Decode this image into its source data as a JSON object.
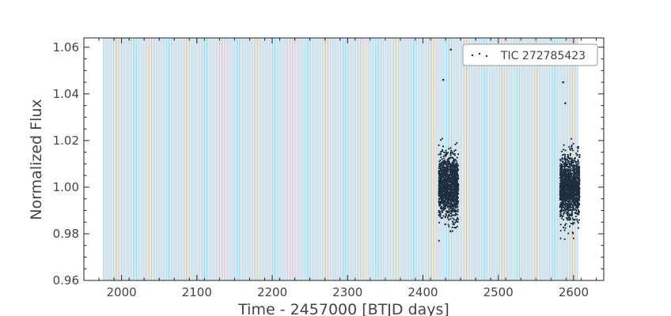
{
  "chart_data": {
    "type": "scatter",
    "title": "",
    "xlabel": "Time - 2457000 [BTJD days]",
    "ylabel": "Normalized Flux",
    "xlim": [
      1950,
      2640
    ],
    "ylim": [
      0.96,
      1.064
    ],
    "xticks": [
      2000,
      2100,
      2200,
      2300,
      2400,
      2500,
      2600
    ],
    "yticks": [
      0.96,
      0.98,
      1.0,
      1.02,
      1.04,
      1.06
    ],
    "xtick_labels": [
      "2000",
      "2100",
      "2200",
      "2300",
      "2400",
      "2500",
      "2600"
    ],
    "ytick_labels": [
      "0.96",
      "0.98",
      "1.00",
      "1.02",
      "1.04",
      "1.06"
    ],
    "grid": false,
    "legend_position": "top-right",
    "series": [
      {
        "name": "TIC 272785423",
        "color": "#1f2f3f",
        "clusters": [
          {
            "x_range": [
              2421,
              2447
            ],
            "y_center": 1.0,
            "y_spread": 0.012,
            "y_min": 0.964,
            "y_max": 1.028
          },
          {
            "x_range": [
              2582,
              2608
            ],
            "y_center": 1.0,
            "y_spread": 0.012,
            "y_min": 0.966,
            "y_max": 1.026
          }
        ],
        "outliers": [
          {
            "x": 2427,
            "y": 1.046
          },
          {
            "x": 2437,
            "y": 1.059
          },
          {
            "x": 2586,
            "y": 1.045
          },
          {
            "x": 2589,
            "y": 1.036
          }
        ]
      }
    ],
    "background_bands": {
      "color": "#a9c8dc",
      "x_start": 1976,
      "x_end": 2606,
      "spacing_days": 2.2
    }
  }
}
